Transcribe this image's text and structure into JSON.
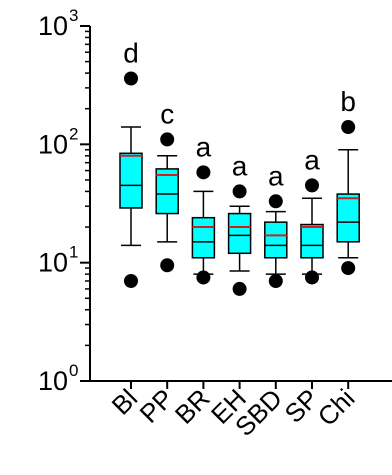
{
  "chart_data": {
    "type": "box",
    "title": "",
    "xlabel": "",
    "ylabel": "",
    "yscale": "log",
    "ylim": [
      1,
      1000
    ],
    "y_ticks": [
      {
        "value": 1,
        "base": "10",
        "exp": "0"
      },
      {
        "value": 10,
        "base": "10",
        "exp": "1"
      },
      {
        "value": 100,
        "base": "10",
        "exp": "2"
      },
      {
        "value": 1000,
        "base": "10",
        "exp": "3"
      }
    ],
    "categories": [
      "Bl",
      "PP",
      "BR",
      "EH",
      "SBD",
      "SP",
      "Chi"
    ],
    "significance_letters": [
      "d",
      "c",
      "a",
      "a",
      "a",
      "a",
      "b"
    ],
    "boxes": [
      {
        "category": "Bl",
        "whisker_low": 14,
        "q1": 29,
        "median": 45,
        "mean": 80,
        "q3": 84,
        "whisker_high": 140,
        "outliers": [
          7,
          360
        ]
      },
      {
        "category": "PP",
        "whisker_low": 15,
        "q1": 26,
        "median": 38,
        "mean": 55,
        "q3": 62,
        "whisker_high": 80,
        "outliers": [
          9.5,
          110
        ]
      },
      {
        "category": "BR",
        "whisker_low": 8,
        "q1": 11,
        "median": 15,
        "mean": 20,
        "q3": 24,
        "whisker_high": 40,
        "outliers": [
          7.5,
          58
        ]
      },
      {
        "category": "EH",
        "whisker_low": 8.5,
        "q1": 12,
        "median": 17,
        "mean": 20,
        "q3": 26,
        "whisker_high": 30,
        "outliers": [
          6,
          40
        ]
      },
      {
        "category": "SBD",
        "whisker_low": 8,
        "q1": 11,
        "median": 14,
        "mean": 17,
        "q3": 22,
        "whisker_high": 27,
        "outliers": [
          7,
          33
        ]
      },
      {
        "category": "SP",
        "whisker_low": 8,
        "q1": 11,
        "median": 14,
        "mean": 20,
        "q3": 21,
        "whisker_high": 35,
        "outliers": [
          7.5,
          45
        ]
      },
      {
        "category": "Chi",
        "whisker_low": 11,
        "q1": 15,
        "median": 22,
        "mean": 35,
        "q3": 38,
        "whisker_high": 90,
        "outliers": [
          9,
          140
        ]
      }
    ],
    "colors": {
      "box_fill": "#00ffff",
      "median_line": "#000000",
      "mean_line": "#cc2222",
      "axis": "#000000",
      "outlier": "#000000"
    },
    "grid": false,
    "legend": "none"
  }
}
